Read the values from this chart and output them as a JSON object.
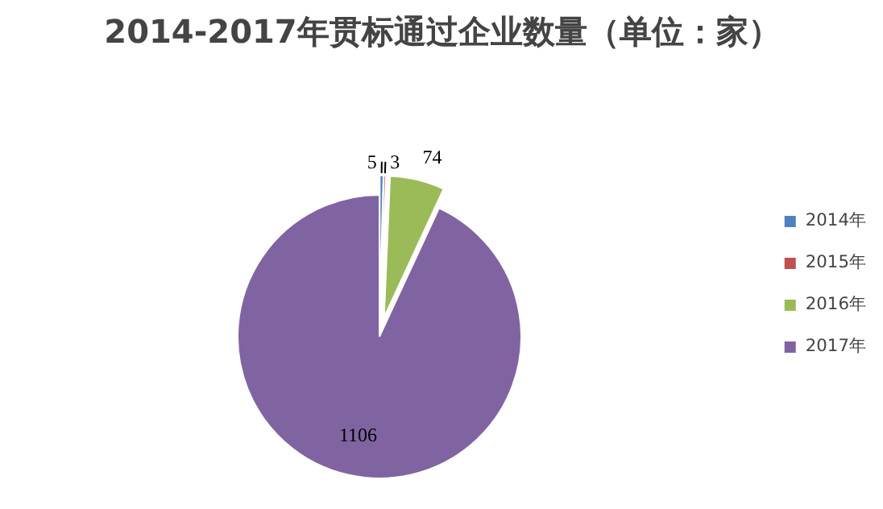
{
  "chart_data": {
    "type": "pie",
    "title": "2014-2017年贯标通过企业数量（单位：家）",
    "categories": [
      "2014年",
      "2015年",
      "2016年",
      "2017年"
    ],
    "values": [
      5,
      3,
      74,
      1106
    ],
    "colors": [
      "#4f81bd",
      "#c0504d",
      "#9bbb59",
      "#8064a2"
    ],
    "data_labels": true,
    "legend": "right"
  }
}
